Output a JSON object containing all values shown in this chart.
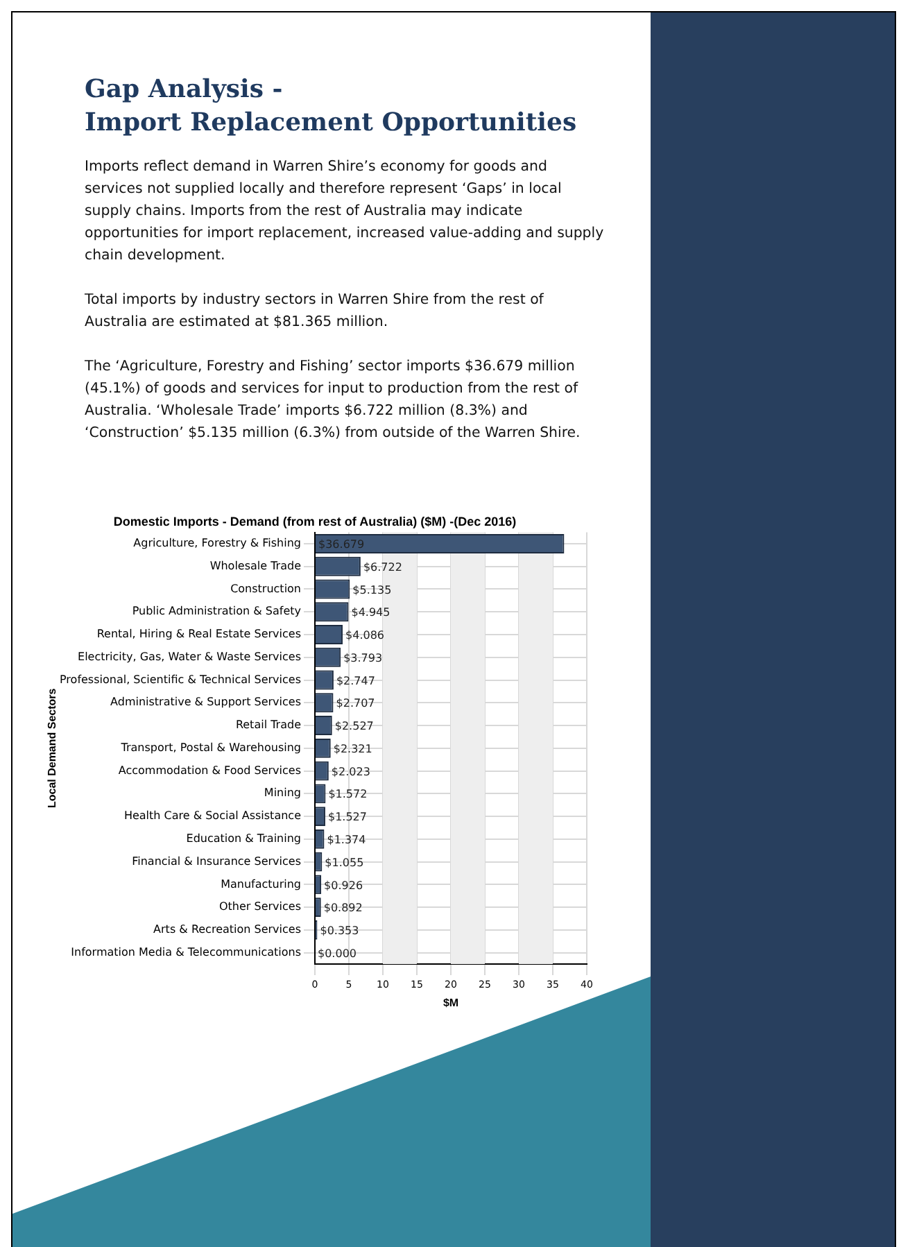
{
  "chart_data": {
    "type": "bar",
    "orientation": "horizontal",
    "title": "Gap Analysis -\nImport Replacement Opportunities",
    "subtitle": "Domestic Imports - Demand (from rest of Australia) ($M) -(Dec 2016)",
    "annotations": [
      "Imports reflect demand in Warren Shire’s economy for goods and services not supplied locally and therefore represent ‘Gaps’ in local supply chains. Imports from the rest of Australia may indicate opportunities for import replacement, increased value-adding and supply chain development.",
      "Total imports by industry sectors in Warren Shire from the rest of Australia are estimated at $81.365 million.",
      "The ‘Agriculture, Forestry and Fishing’ sector imports $36.679 million (45.1%) of goods and services for input to production from the rest of Australia. ‘Wholesale Trade’ imports $6.722 million (8.3%) and ‘Construction’ $5.135 million (6.3%) from outside of the Warren Shire."
    ],
    "xlabel": "$M",
    "ylabel": "Local Demand Sectors",
    "categories": [
      "Agriculture, Forestry & Fishing",
      "Wholesale Trade",
      "Construction",
      "Public Administration & Safety",
      "Rental, Hiring & Real Estate Services",
      "Electricity, Gas, Water & Waste Services",
      "Professional, Scientific & Technical Services",
      "Administrative & Support Services",
      "Retail Trade",
      "Transport, Postal & Warehousing",
      "Accommodation & Food Services",
      "Mining",
      "Health Care & Social Assistance",
      "Education & Training",
      "Financial & Insurance Services",
      "Manufacturing",
      "Other Services",
      "Arts & Recreation Services",
      "Information Media & Telecommunications"
    ],
    "values": [
      36.679,
      6.722,
      5.135,
      4.945,
      4.086,
      3.793,
      2.747,
      2.707,
      2.527,
      2.321,
      2.023,
      1.572,
      1.527,
      1.374,
      1.055,
      0.926,
      0.892,
      0.353,
      0.0
    ],
    "value_labels": [
      "$36.679",
      "$6.722",
      "$5.135",
      "$4.945",
      "$4.086",
      "$3.793",
      "$2.747",
      "$2.707",
      "$2.527",
      "$2.321",
      "$2.023",
      "$1.572",
      "$1.527",
      "$1.374",
      "$1.055",
      "$0.926",
      "$0.892",
      "$0.353",
      "$0.000"
    ],
    "color": "#3e5676",
    "xlim": [
      0,
      40
    ],
    "xticks": [
      0,
      5,
      10,
      15,
      20,
      25,
      30,
      35,
      40
    ],
    "grid": true,
    "bands": [
      {
        "axis": "x",
        "from": 10,
        "to": 15,
        "color": "#eeeeee"
      },
      {
        "axis": "x",
        "from": 20,
        "to": 25,
        "color": "#eeeeee"
      },
      {
        "axis": "x",
        "from": 30,
        "to": 35,
        "color": "#eeeeee"
      }
    ]
  }
}
